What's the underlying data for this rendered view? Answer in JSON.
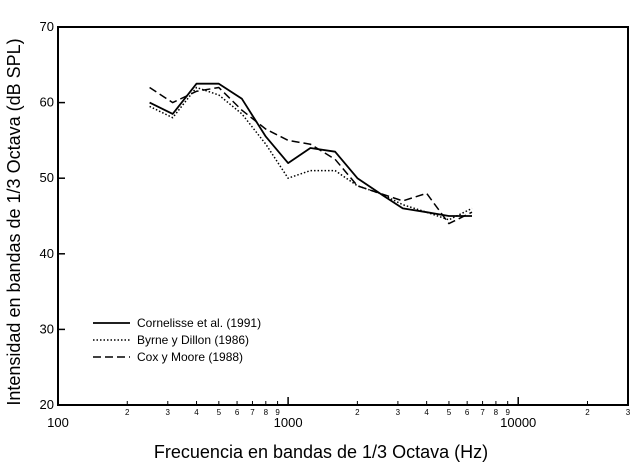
{
  "chart_data": {
    "type": "line",
    "xlabel": "Frecuencia en bandas de 1/3 Octava (Hz)",
    "ylabel": "Intensidad en bandas de 1/3 Octava (dB SPL)",
    "x_scale": "log",
    "xlim": [
      100,
      30000
    ],
    "ylim": [
      20,
      70
    ],
    "x_ticks_major": [
      {
        "value": 100,
        "label": "100"
      },
      {
        "value": 1000,
        "label": "1000"
      },
      {
        "value": 10000,
        "label": "10000"
      }
    ],
    "x_ticks_minor": [
      {
        "value": 200,
        "label": "2"
      },
      {
        "value": 300,
        "label": "3"
      },
      {
        "value": 400,
        "label": "4"
      },
      {
        "value": 500,
        "label": "5"
      },
      {
        "value": 600,
        "label": "6"
      },
      {
        "value": 700,
        "label": "7"
      },
      {
        "value": 800,
        "label": "8"
      },
      {
        "value": 900,
        "label": "9"
      },
      {
        "value": 2000,
        "label": "2"
      },
      {
        "value": 3000,
        "label": "3"
      },
      {
        "value": 4000,
        "label": "4"
      },
      {
        "value": 5000,
        "label": "5"
      },
      {
        "value": 6000,
        "label": "6"
      },
      {
        "value": 7000,
        "label": "7"
      },
      {
        "value": 8000,
        "label": "8"
      },
      {
        "value": 9000,
        "label": "9"
      },
      {
        "value": 20000,
        "label": "2"
      },
      {
        "value": 30000,
        "label": "3"
      }
    ],
    "y_ticks": [
      {
        "value": 20,
        "label": "20"
      },
      {
        "value": 30,
        "label": "30"
      },
      {
        "value": 40,
        "label": "40"
      },
      {
        "value": 50,
        "label": "50"
      },
      {
        "value": 60,
        "label": "60"
      },
      {
        "value": 70,
        "label": "70"
      }
    ],
    "grid": false,
    "legend_position": "bottom-left",
    "series": [
      {
        "name": "Cornelisse et al. (1991)",
        "style": "solid",
        "x": [
          250,
          315,
          400,
          500,
          630,
          800,
          1000,
          1250,
          1600,
          2000,
          2500,
          3150,
          4000,
          5000,
          6300
        ],
        "y": [
          60,
          58.5,
          62.5,
          62.5,
          60.5,
          55.5,
          52,
          54,
          53.5,
          50,
          48,
          46,
          45.5,
          45,
          45
        ]
      },
      {
        "name": "Byrne y Dillon (1986)",
        "style": "dotted",
        "x": [
          250,
          315,
          400,
          500,
          630,
          800,
          1000,
          1250,
          1600,
          2000,
          2500,
          3150,
          4000,
          5000,
          6300
        ],
        "y": [
          59.5,
          58,
          62,
          61,
          58.5,
          54.5,
          50,
          51,
          51,
          49,
          48,
          46.5,
          45.5,
          44.5,
          46
        ]
      },
      {
        "name": "Cox y Moore (1988)",
        "style": "dashed",
        "x": [
          250,
          315,
          400,
          500,
          630,
          800,
          1000,
          1250,
          1600,
          2000,
          2500,
          3150,
          4000,
          5000,
          6300
        ],
        "y": [
          62,
          60,
          61.5,
          62,
          59,
          56.5,
          55,
          54.5,
          52.5,
          49,
          48,
          47,
          48,
          44,
          45.5
        ]
      }
    ]
  }
}
